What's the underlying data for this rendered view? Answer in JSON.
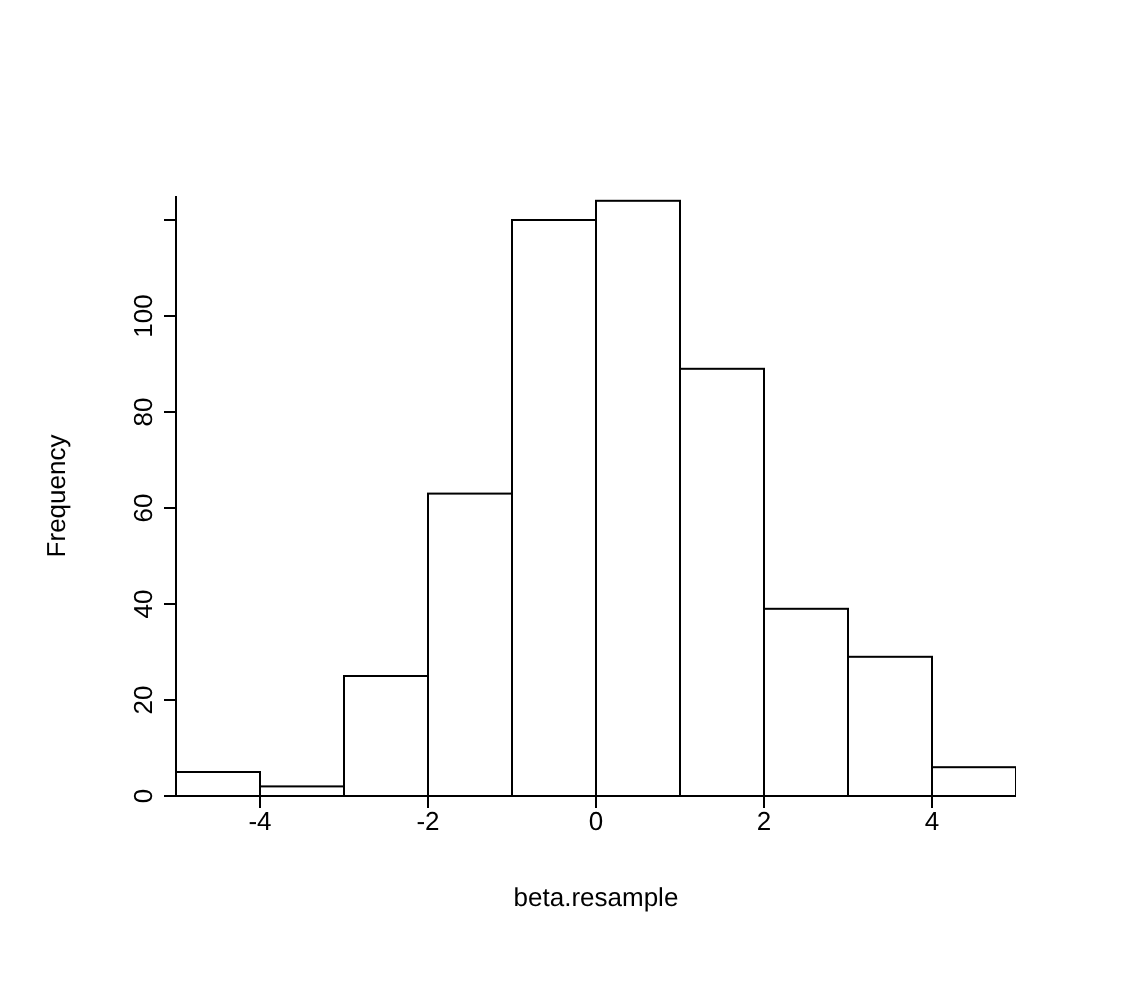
{
  "chart_data": {
    "type": "histogram",
    "xlabel": "beta.resample",
    "ylabel": "Frequency",
    "bins": [
      -5,
      -4,
      -3,
      -2,
      -1,
      0,
      1,
      2,
      3,
      4,
      5
    ],
    "values": [
      5,
      2,
      25,
      63,
      120,
      124,
      89,
      39,
      29,
      6
    ],
    "color": "#ffffff",
    "xlim": [
      -5,
      5
    ],
    "xticks": [
      -4,
      -2,
      0,
      2,
      4
    ],
    "ylim": [
      0,
      125
    ],
    "yticks": [
      0,
      20,
      40,
      60,
      80,
      100,
      {
        "value": 120,
        "label": null
      }
    ],
    "grid": false
  }
}
